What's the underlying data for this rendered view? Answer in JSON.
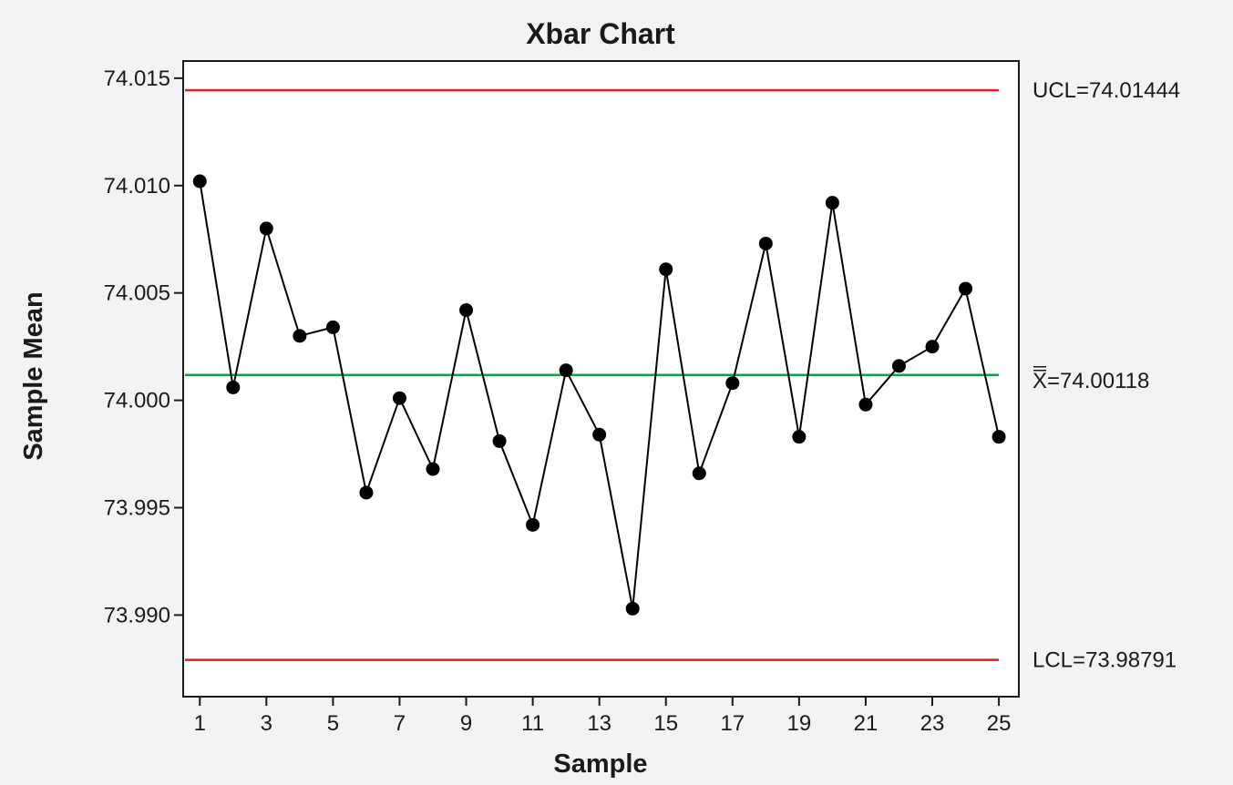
{
  "chart_data": {
    "type": "line",
    "title": "Xbar Chart",
    "xlabel": "Sample",
    "ylabel": "Sample Mean",
    "xlim": [
      0.5,
      25.6
    ],
    "ylim": [
      73.9862,
      74.0158
    ],
    "x_ticks": [
      1,
      3,
      5,
      7,
      9,
      11,
      13,
      15,
      17,
      19,
      21,
      23,
      25
    ],
    "x_tick_labels": [
      "1",
      "3",
      "5",
      "7",
      "9",
      "11",
      "13",
      "15",
      "17",
      "19",
      "21",
      "23",
      "25"
    ],
    "y_ticks": [
      73.99,
      73.995,
      74.0,
      74.005,
      74.01,
      74.015
    ],
    "y_tick_labels": [
      "73.990",
      "73.995",
      "74.000",
      "74.005",
      "74.010",
      "74.015"
    ],
    "grid": false,
    "x": [
      1,
      2,
      3,
      4,
      5,
      6,
      7,
      8,
      9,
      10,
      11,
      12,
      13,
      14,
      15,
      16,
      17,
      18,
      19,
      20,
      21,
      22,
      23,
      24,
      25
    ],
    "values": [
      74.0102,
      74.0006,
      74.008,
      74.003,
      74.0034,
      73.9957,
      74.0001,
      73.9968,
      74.0042,
      73.9981,
      73.9942,
      74.0014,
      73.9984,
      73.9903,
      74.0061,
      73.9966,
      74.0008,
      74.0073,
      73.9983,
      74.0092,
      73.9998,
      74.0016,
      74.0025,
      74.0052,
      73.9983
    ],
    "series_color": "#000000",
    "control_lines": [
      {
        "value": 74.01444,
        "color": "#dd2127",
        "label_prefix": "UCL=",
        "label_value": "74.01444",
        "overbar": false
      },
      {
        "value": 74.00118,
        "color": "#12a04a",
        "label_prefix": "X",
        "label_value": "=74.00118",
        "overbar": true
      },
      {
        "value": 73.98791,
        "color": "#dd2127",
        "label_prefix": "LCL=",
        "label_value": "73.98791",
        "overbar": false
      }
    ]
  }
}
